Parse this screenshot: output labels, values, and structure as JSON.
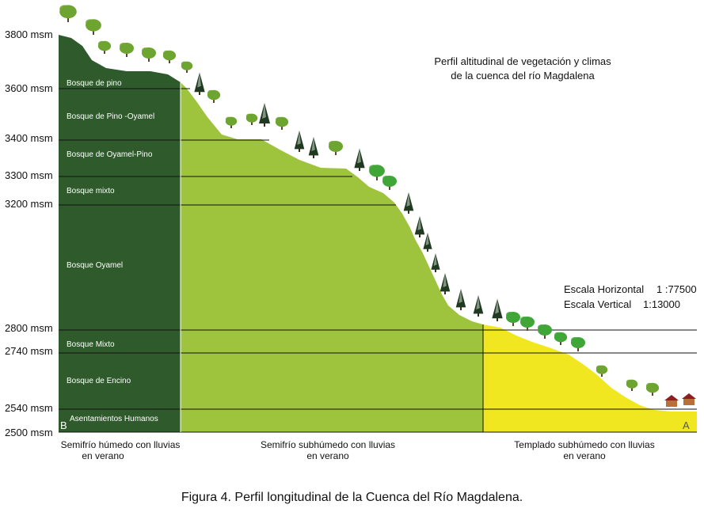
{
  "title_lines": [
    "Perfil altitudinal de vegetación y climas",
    "de la cuenca del río Magdalena"
  ],
  "altitudes": [
    "3800 msm",
    "3600 msm",
    "3400 msm",
    "3300 msm",
    "3200 msm",
    "2800 msm",
    "2740 msm",
    "2540 msm",
    "2500 msm"
  ],
  "vegetation_zones": [
    "Bosque de pino",
    "Bosque de Pino -Oyamel",
    "Bosque de Oyamel-Pino",
    "Bosque mixto",
    "Bosque Oyamel",
    "Bosque Mixto",
    "Bosque de Encino",
    "Asentamientos Humanos"
  ],
  "scales": {
    "horizontal_label": "Escala Horizontal",
    "horizontal_value": "1 :77500",
    "vertical_label": "Escala Vertical",
    "vertical_value": "1:13000"
  },
  "climates": [
    [
      "Semifrío húmedo con lluvias",
      "en verano"
    ],
    [
      "Semifrío subhúmedo con lluvias",
      "en verano"
    ],
    [
      "Templado subhúmedo con lluvias",
      "en verano"
    ]
  ],
  "endpoints": {
    "start": "B",
    "end": "A"
  },
  "caption": "Figura 4. Perfil longitudinal de la Cuenca del Río Magdalena.",
  "colors": {
    "semifrio_humedo": "#2f5a2c",
    "semifrio_subhumedo": "#9ec43d",
    "templado_subhumedo": "#f1e721",
    "tree_light": "#6ea531",
    "tree_dark": "#1f3a20",
    "tree_bright": "#3fa637"
  },
  "icons": [
    "pine-tree-icon",
    "broadleaf-tree-icon",
    "house-icon"
  ]
}
